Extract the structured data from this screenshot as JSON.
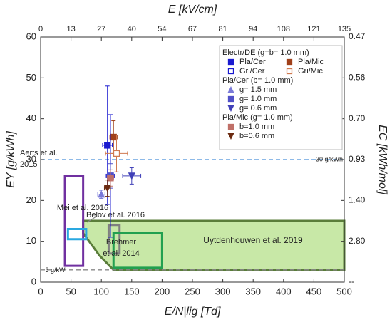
{
  "chart_data": {
    "type": "scatter",
    "xlabel": "E/N|lig [Td]",
    "ylabel": "EY [g/kWh]",
    "x2label": "E [kV/cm]",
    "y2label": "EC [kWh/mol]",
    "xlim": [
      0,
      500
    ],
    "xticks": [
      0,
      50,
      100,
      150,
      200,
      250,
      300,
      350,
      400,
      450,
      500
    ],
    "ylim": [
      0,
      60
    ],
    "yticks": [
      0,
      10,
      20,
      30,
      40,
      50,
      60
    ],
    "x2tick_labels": [
      "0",
      "13",
      "27",
      "40",
      "54",
      "67",
      "81",
      "94",
      "108",
      "121",
      "135"
    ],
    "y2tick_labels": [
      "--",
      "2.80",
      "1.40",
      "0.93",
      "0.70",
      "0.56",
      "0.47"
    ],
    "hlines": [
      {
        "value": 30,
        "label": "30 g/kWh",
        "color": "#4a90d9"
      },
      {
        "value": 3,
        "label": "3 g/kWh",
        "color": "#888888"
      }
    ],
    "regions": [
      {
        "label": [
          "Uytdenhouwen et al. 2019"
        ],
        "color": "#5a7d3a",
        "fill": "#b5e08a",
        "x": [
          70,
          500,
          500,
          120,
          97,
          70
        ],
        "y": [
          15,
          15,
          3,
          3,
          6.5,
          12
        ]
      },
      {
        "label": [
          "Aerts et al.",
          "2015"
        ],
        "color": "#7030a0",
        "x": [
          40,
          70,
          70,
          40
        ],
        "y": [
          26,
          26,
          4,
          4
        ]
      },
      {
        "label": [
          "Mei et al. 2016"
        ],
        "color": "#2aa8e0",
        "x": [
          45,
          75,
          75,
          45
        ],
        "y": [
          13,
          13,
          10.5,
          10.5
        ]
      },
      {
        "label": [
          "Belov et al. 2016"
        ],
        "color": "#7f7f7f",
        "x": [
          112,
          130,
          130,
          112
        ],
        "y": [
          14,
          14,
          7,
          7
        ]
      },
      {
        "label": [
          "Brehmer",
          "et al. 2014"
        ],
        "color": "#22a050",
        "x": [
          120,
          200,
          200,
          120
        ],
        "y": [
          12,
          12,
          3.5,
          3.5
        ]
      }
    ],
    "legend_groups": [
      "Electr/DE (g=b= 1.0 mm)",
      "Pla/Cer (b= 1.0 mm)",
      "Pla/Mic (g= 1.0 mm)"
    ],
    "series": [
      {
        "name": "Pla/Cer",
        "group": 0,
        "color": "#1a1ad0",
        "marker": "square",
        "filled": true,
        "x": [
          110
        ],
        "values": [
          33.5
        ],
        "xerr": [
          8
        ],
        "yerr": [
          14.5
        ]
      },
      {
        "name": "Pla/Mic",
        "group": 0,
        "color": "#a0401a",
        "marker": "square",
        "filled": true,
        "x": [
          120
        ],
        "values": [
          35.5
        ],
        "xerr": [
          6
        ],
        "yerr": [
          4
        ]
      },
      {
        "name": "Gri/Cer",
        "group": 0,
        "color": "#1a1ad0",
        "marker": "square",
        "filled": false,
        "x": [
          115
        ],
        "values": [
          26
        ],
        "xerr": [
          7
        ],
        "yerr": [
          15
        ]
      },
      {
        "name": "Gri/Mic",
        "group": 0,
        "color": "#d07a50",
        "marker": "square",
        "filled": false,
        "x": [
          125
        ],
        "values": [
          31.5
        ],
        "xerr": [
          18
        ],
        "yerr": [
          4.5
        ]
      },
      {
        "name": "g= 1.5 mm",
        "group": 1,
        "color": "#7a7ad8",
        "marker": "up",
        "filled": true,
        "x": [
          100
        ],
        "values": [
          21.5
        ],
        "xerr": [
          6
        ],
        "yerr": [
          1
        ]
      },
      {
        "name": "g= 1.0 mm",
        "group": 1,
        "color": "#5050c8",
        "marker": "square",
        "filled": true,
        "x": [
          115
        ],
        "values": [
          26
        ],
        "xerr": [
          6
        ],
        "yerr": [
          3
        ]
      },
      {
        "name": "g= 0.6 mm",
        "group": 1,
        "color": "#4040b8",
        "marker": "down",
        "filled": true,
        "x": [
          150
        ],
        "values": [
          26
        ],
        "xerr": [
          15
        ],
        "yerr": [
          2
        ]
      },
      {
        "name": "b=1.0 mm",
        "group": 2,
        "color": "#c07068",
        "marker": "square",
        "filled": true,
        "x": [
          115
        ],
        "values": [
          25.5
        ],
        "xerr": [
          5
        ],
        "yerr": [
          2
        ]
      },
      {
        "name": "b=0.6 mm",
        "group": 2,
        "color": "#6b2a10",
        "marker": "down",
        "filled": true,
        "x": [
          110
        ],
        "values": [
          23
        ],
        "xerr": [
          5
        ],
        "yerr": [
          2
        ]
      }
    ]
  }
}
